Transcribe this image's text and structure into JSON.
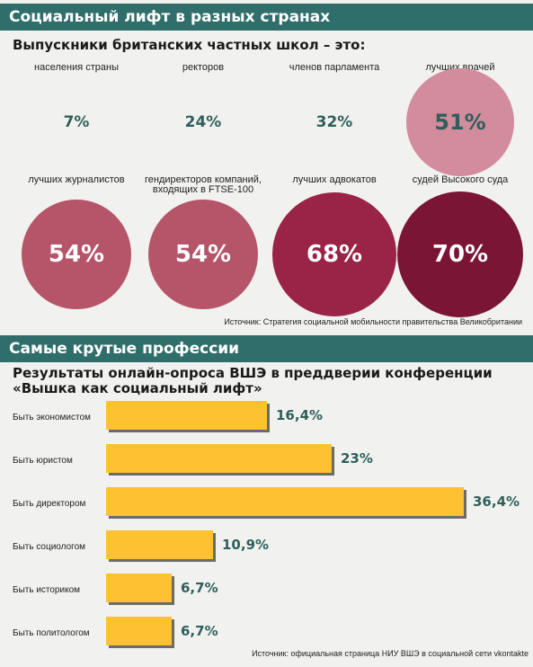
{
  "section1": {
    "header": "Социальный лифт в разных странах",
    "subtitle": "Выпускники британских частных школ – это:",
    "source": "Источник: Стратегия социальной мобильности правительства Великобритании"
  },
  "section2": {
    "header": "Самые крутые профессии",
    "subtitle_line1": "Результаты онлайн-опроса ВШЭ в преддверии конференции",
    "subtitle_line2": "«Вышка как социальный лифт»",
    "source": "Источник: официальная страница НИУ ВШЭ в социальной сети vkontakte"
  },
  "colors": {
    "header_bg": "#2f6e6a",
    "bar": "#fec131",
    "value_text": "#2f5f5c",
    "bubble_51": "#d28c9d",
    "bubble_54": "#b65569",
    "bubble_68": "#9a2447",
    "bubble_70": "#7a1535"
  },
  "chart_data": [
    {
      "type": "bubble",
      "categories": [
        "населения страны",
        "ректоров",
        "членов парламента",
        "лучших врачей",
        "лучших журналистов",
        "гендиректоров компаний, входящих в FTSE-100",
        "лучших адвокатов",
        "судей Высокого суда"
      ],
      "values": [
        7,
        24,
        32,
        51,
        54,
        54,
        68,
        70
      ],
      "labels": [
        "7%",
        "24%",
        "32%",
        "51%",
        "54%",
        "54%",
        "68%",
        "70%"
      ],
      "label_lines": [
        [
          "населения страны"
        ],
        [
          "ректоров"
        ],
        [
          "членов парламента"
        ],
        [
          "лучших врачей"
        ],
        [
          "лучших журналистов"
        ],
        [
          "гендиректоров компаний,",
          "входящих в FTSE-100"
        ],
        [
          "лучших адвокатов"
        ],
        [
          "судей Высокого суда"
        ]
      ]
    },
    {
      "type": "bar",
      "orientation": "horizontal",
      "categories": [
        "Быть экономистом",
        "Быть юристом",
        "Быть директором",
        "Быть социологом",
        "Быть историком",
        "Быть политологом"
      ],
      "values": [
        16.4,
        23,
        36.4,
        10.9,
        6.7,
        6.7
      ],
      "labels": [
        "16,4%",
        "23%",
        "36,4%",
        "10,9%",
        "6,7%",
        "6,7%"
      ]
    }
  ]
}
